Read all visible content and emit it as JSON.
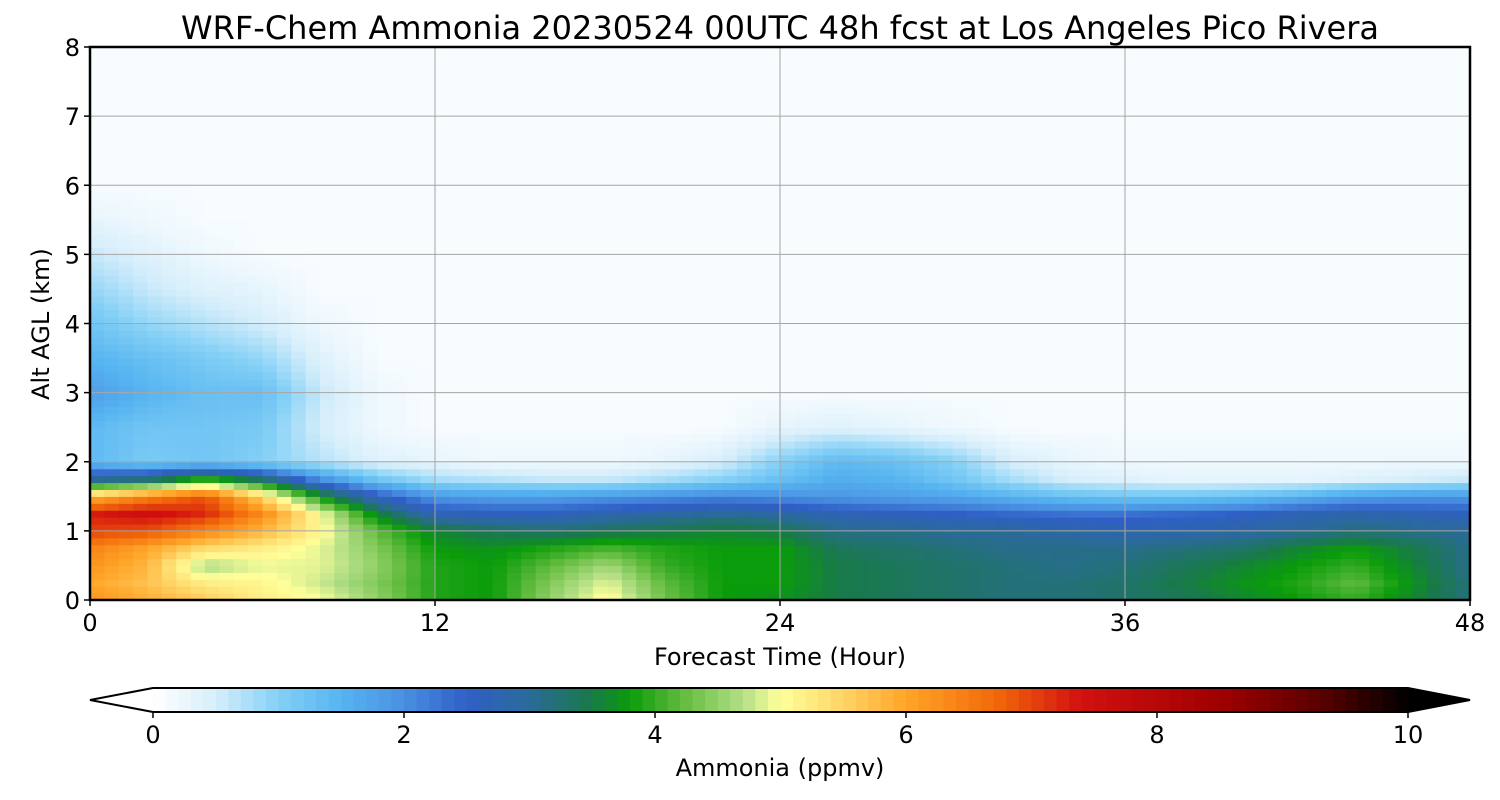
{
  "chart_data": {
    "type": "heatmap",
    "title": "WRF-Chem Ammonia  20230524 00UTC 48h fcst at Los Angeles Pico Rivera",
    "xlabel": "Forecast Time (Hour)",
    "ylabel": "Alt AGL (km)",
    "xlim": [
      0,
      48
    ],
    "ylim": [
      0,
      8
    ],
    "x_ticks": [
      "0",
      "12",
      "24",
      "36",
      "48"
    ],
    "y_ticks": [
      "0",
      "1",
      "2",
      "3",
      "4",
      "5",
      "6",
      "7",
      "8"
    ],
    "grid": true,
    "colorbar": {
      "label": "Ammonia  (ppmv)",
      "range": [
        0,
        10
      ],
      "ticks": [
        "0",
        "2",
        "4",
        "6",
        "8",
        "10"
      ],
      "extend": "both",
      "color_stops": [
        {
          "v": 0.0,
          "c": "#ffffff"
        },
        {
          "v": 0.5,
          "c": "#d6eefb"
        },
        {
          "v": 1.0,
          "c": "#84d0f6"
        },
        {
          "v": 1.5,
          "c": "#56b4f0"
        },
        {
          "v": 2.0,
          "c": "#4a90e2"
        },
        {
          "v": 2.5,
          "c": "#2f5fc6"
        },
        {
          "v": 3.0,
          "c": "#2b6a9a"
        },
        {
          "v": 3.5,
          "c": "#187a48"
        },
        {
          "v": 3.8,
          "c": "#0a9c0a"
        },
        {
          "v": 4.2,
          "c": "#5fba3c"
        },
        {
          "v": 4.7,
          "c": "#b4df86"
        },
        {
          "v": 5.0,
          "c": "#ffff9a"
        },
        {
          "v": 5.5,
          "c": "#ffd466"
        },
        {
          "v": 6.0,
          "c": "#ffa528"
        },
        {
          "v": 6.7,
          "c": "#f26a0a"
        },
        {
          "v": 7.4,
          "c": "#d21010"
        },
        {
          "v": 8.5,
          "c": "#a00000"
        },
        {
          "v": 9.3,
          "c": "#5a0000"
        },
        {
          "v": 10.0,
          "c": "#000000"
        }
      ]
    },
    "field": {
      "times": [
        0,
        2,
        4,
        6,
        8,
        10,
        12,
        14,
        16,
        18,
        20,
        22,
        24,
        26,
        28,
        30,
        32,
        34,
        36,
        38,
        40,
        42,
        44,
        46,
        48
      ],
      "altitudes": [
        0,
        0.25,
        0.5,
        0.75,
        1.0,
        1.25,
        1.5,
        1.75,
        2.0,
        2.5,
        3.0,
        3.5,
        4.0,
        4.5,
        5.0,
        5.5,
        6.0,
        7.0,
        8.0
      ],
      "values": [
        [
          6.2,
          5.9,
          5.6,
          5.2,
          5.0,
          4.5,
          3.9,
          3.8,
          4.5,
          5.1,
          4.3,
          3.8,
          3.7,
          3.5,
          3.4,
          3.3,
          3.2,
          3.2,
          3.3,
          3.4,
          3.6,
          3.8,
          4.0,
          3.6,
          3.2
        ],
        [
          6.0,
          5.7,
          5.2,
          5.1,
          4.8,
          4.4,
          3.9,
          3.8,
          4.4,
          4.9,
          4.2,
          3.8,
          3.8,
          3.5,
          3.4,
          3.3,
          3.2,
          3.2,
          3.3,
          3.5,
          3.7,
          3.9,
          4.2,
          3.7,
          3.2
        ],
        [
          6.2,
          5.8,
          4.6,
          4.9,
          4.9,
          4.5,
          3.9,
          3.8,
          4.2,
          4.6,
          4.0,
          3.8,
          3.8,
          3.5,
          3.4,
          3.3,
          3.2,
          3.1,
          3.2,
          3.4,
          3.6,
          3.8,
          4.0,
          3.6,
          3.1
        ],
        [
          6.4,
          6.0,
          5.4,
          5.2,
          4.9,
          4.4,
          3.8,
          3.7,
          3.9,
          4.1,
          3.9,
          3.8,
          3.8,
          3.4,
          3.3,
          3.2,
          3.1,
          3.1,
          3.1,
          3.2,
          3.3,
          3.6,
          3.8,
          3.5,
          3.1
        ],
        [
          7.0,
          6.9,
          6.4,
          5.8,
          5.1,
          4.2,
          3.6,
          3.4,
          3.3,
          3.4,
          3.5,
          3.6,
          3.5,
          3.1,
          3.1,
          3.0,
          3.0,
          2.9,
          2.8,
          2.8,
          2.9,
          3.0,
          3.2,
          3.1,
          3.0
        ],
        [
          7.3,
          7.5,
          7.2,
          6.3,
          5.0,
          3.6,
          2.7,
          2.6,
          2.6,
          2.8,
          2.9,
          3.0,
          2.9,
          2.7,
          2.6,
          2.5,
          2.4,
          2.3,
          2.3,
          2.4,
          2.5,
          2.7,
          2.8,
          2.7,
          2.6
        ],
        [
          5.8,
          6.4,
          6.9,
          5.5,
          3.8,
          2.6,
          1.9,
          1.8,
          1.8,
          1.9,
          2.0,
          2.1,
          2.0,
          1.9,
          1.8,
          1.7,
          1.5,
          1.3,
          1.2,
          1.2,
          1.3,
          1.5,
          1.8,
          1.9,
          1.9
        ],
        [
          3.0,
          3.2,
          4.0,
          3.3,
          2.0,
          1.2,
          0.8,
          0.7,
          0.6,
          0.6,
          0.8,
          1.0,
          1.3,
          1.6,
          1.5,
          1.2,
          0.8,
          0.5,
          0.4,
          0.3,
          0.3,
          0.3,
          0.4,
          0.5,
          0.6
        ],
        [
          1.4,
          1.1,
          1.2,
          1.0,
          0.7,
          0.4,
          0.3,
          0.2,
          0.2,
          0.2,
          0.3,
          0.5,
          1.0,
          1.4,
          1.3,
          1.0,
          0.5,
          0.3,
          0.2,
          0.2,
          0.2,
          0.2,
          0.2,
          0.2,
          0.2
        ],
        [
          1.4,
          1.2,
          1.2,
          1.1,
          0.5,
          0.2,
          0.1,
          0.1,
          0.1,
          0.1,
          0.1,
          0.1,
          0.3,
          0.4,
          0.3,
          0.2,
          0.1,
          0.1,
          0.1,
          0.1,
          0.1,
          0.1,
          0.1,
          0.1,
          0.1
        ],
        [
          1.8,
          1.5,
          1.3,
          1.3,
          0.6,
          0.2,
          0.1,
          0.1,
          0.1,
          0.1,
          0.1,
          0.1,
          0.1,
          0.1,
          0.1,
          0.1,
          0.1,
          0.1,
          0.1,
          0.1,
          0.1,
          0.1,
          0.1,
          0.1,
          0.1
        ],
        [
          1.5,
          1.3,
          1.1,
          0.9,
          0.4,
          0.1,
          0.1,
          0.1,
          0.1,
          0.1,
          0.1,
          0.1,
          0.1,
          0.1,
          0.1,
          0.1,
          0.1,
          0.1,
          0.1,
          0.1,
          0.1,
          0.1,
          0.1,
          0.1,
          0.1
        ],
        [
          1.2,
          0.9,
          0.7,
          0.5,
          0.2,
          0.1,
          0.1,
          0.1,
          0.1,
          0.1,
          0.1,
          0.1,
          0.1,
          0.1,
          0.1,
          0.1,
          0.1,
          0.1,
          0.1,
          0.1,
          0.1,
          0.1,
          0.1,
          0.1,
          0.1
        ],
        [
          0.9,
          0.6,
          0.4,
          0.3,
          0.1,
          0.1,
          0.1,
          0.1,
          0.1,
          0.1,
          0.1,
          0.1,
          0.1,
          0.1,
          0.1,
          0.1,
          0.1,
          0.1,
          0.1,
          0.1,
          0.1,
          0.1,
          0.1,
          0.1,
          0.1
        ],
        [
          0.6,
          0.4,
          0.2,
          0.1,
          0.1,
          0.1,
          0.1,
          0.1,
          0.1,
          0.1,
          0.1,
          0.1,
          0.1,
          0.1,
          0.1,
          0.1,
          0.1,
          0.1,
          0.1,
          0.1,
          0.1,
          0.1,
          0.1,
          0.1,
          0.1
        ],
        [
          0.3,
          0.2,
          0.1,
          0.1,
          0.1,
          0.1,
          0.1,
          0.1,
          0.1,
          0.1,
          0.1,
          0.1,
          0.1,
          0.1,
          0.1,
          0.1,
          0.1,
          0.1,
          0.1,
          0.1,
          0.1,
          0.1,
          0.1,
          0.1,
          0.1
        ],
        [
          0.1,
          0.1,
          0.1,
          0.1,
          0.1,
          0.1,
          0.1,
          0.1,
          0.1,
          0.1,
          0.1,
          0.1,
          0.1,
          0.1,
          0.1,
          0.1,
          0.1,
          0.1,
          0.1,
          0.1,
          0.1,
          0.1,
          0.1,
          0.1,
          0.1
        ],
        [
          0.1,
          0.1,
          0.1,
          0.1,
          0.1,
          0.1,
          0.1,
          0.1,
          0.1,
          0.1,
          0.1,
          0.1,
          0.1,
          0.1,
          0.1,
          0.1,
          0.1,
          0.1,
          0.1,
          0.1,
          0.1,
          0.1,
          0.1,
          0.1,
          0.1
        ],
        [
          0.1,
          0.1,
          0.1,
          0.1,
          0.1,
          0.1,
          0.1,
          0.1,
          0.1,
          0.1,
          0.1,
          0.1,
          0.1,
          0.1,
          0.1,
          0.1,
          0.1,
          0.1,
          0.1,
          0.1,
          0.1,
          0.1,
          0.1,
          0.1,
          0.1
        ]
      ]
    }
  }
}
